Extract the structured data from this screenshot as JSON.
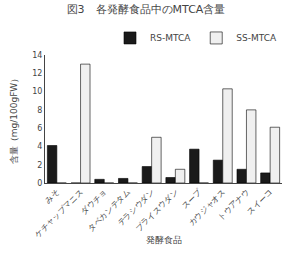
{
  "chart_data": {
    "type": "bar",
    "title": "図3　各発酵食品中のMTCA含量",
    "categories": [
      "みそ",
      "ケチャップマニス",
      "ダウチョ",
      "タベカンテタム",
      "テラシウダン",
      "プライスウダン",
      "スープ",
      "カウジャオス",
      "トウアナウ",
      "スイーコ"
    ],
    "series": [
      {
        "name": "RS-MTCA",
        "color": "#1a1a1a",
        "values": [
          4.1,
          0.0,
          0.4,
          0.5,
          1.8,
          0.6,
          3.7,
          2.5,
          1.5,
          1.1
        ]
      },
      {
        "name": "SS-MTCA",
        "color": "#f0f0f0",
        "values": [
          0.0,
          13.0,
          0.0,
          0.0,
          5.0,
          1.5,
          0.0,
          10.3,
          8.0,
          6.1
        ]
      }
    ],
    "xlabel": "発酵食品",
    "ylabel": "含量（mg/100gFW）",
    "ylim": [
      0,
      14
    ],
    "yticks": [
      0,
      2,
      4,
      6,
      8,
      10,
      12,
      14
    ],
    "grid": false,
    "legend": "upper right"
  }
}
